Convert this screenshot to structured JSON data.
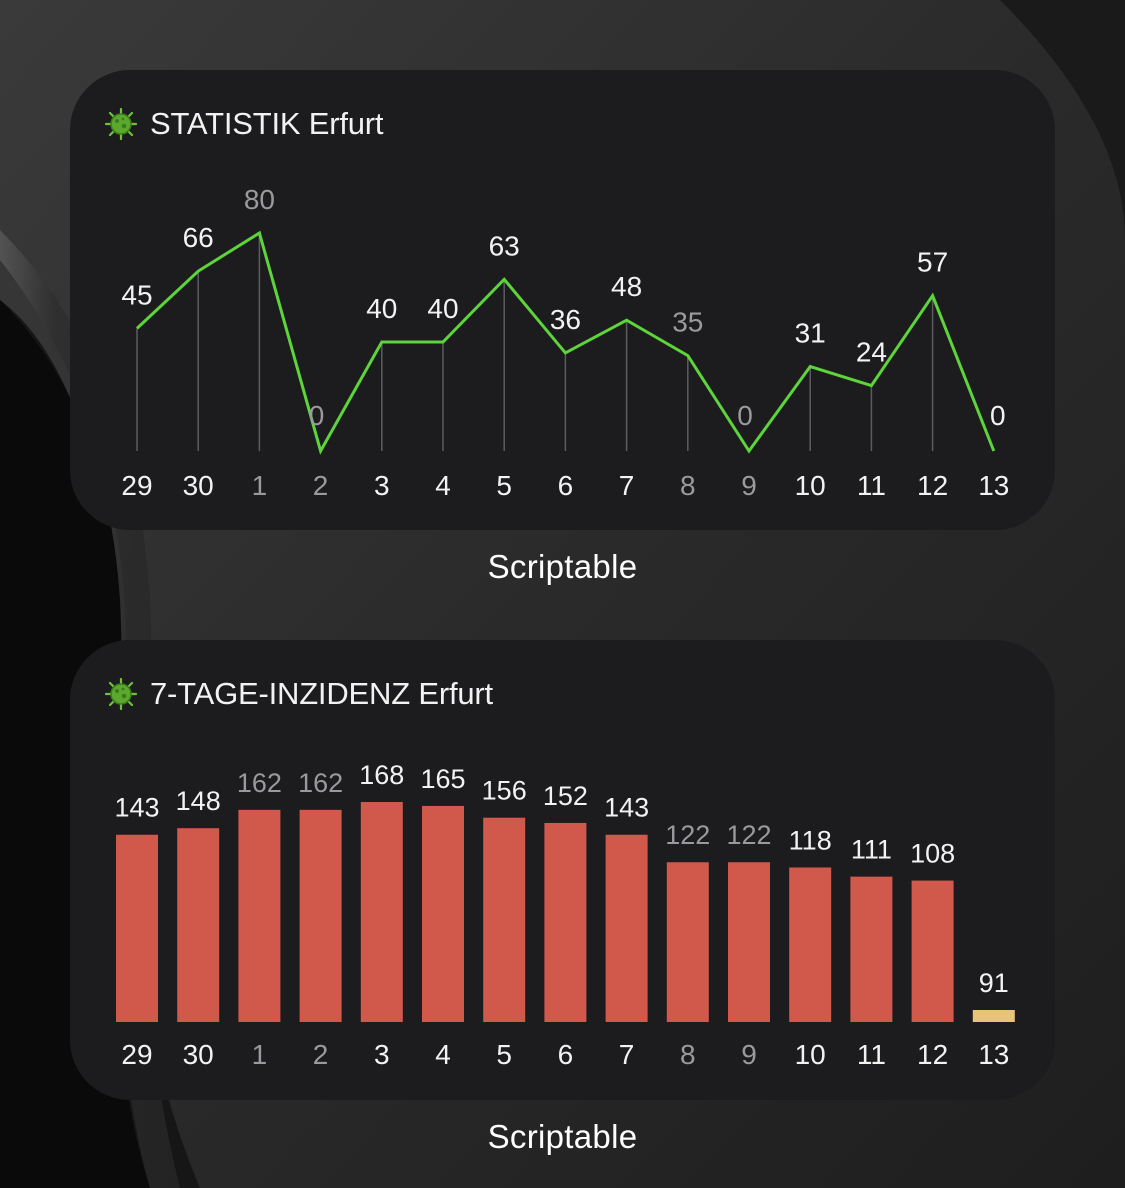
{
  "widgets": [
    {
      "title": "STATISTIK Erfurt",
      "icon": "virus-icon",
      "chart_data": {
        "type": "line",
        "categories": [
          "29",
          "30",
          "1",
          "2",
          "3",
          "4",
          "5",
          "6",
          "7",
          "8",
          "9",
          "10",
          "11",
          "12",
          "13"
        ],
        "values": [
          45,
          66,
          80,
          0,
          40,
          40,
          63,
          36,
          48,
          35,
          0,
          31,
          24,
          57,
          0
        ],
        "dimmed_categories": [
          "1",
          "2",
          "8",
          "9"
        ],
        "line_color": "#5dd43a"
      }
    },
    {
      "title": "7-TAGE-INZIDENZ Erfurt",
      "icon": "virus-icon",
      "chart_data": {
        "type": "bar",
        "categories": [
          "29",
          "30",
          "1",
          "2",
          "3",
          "4",
          "5",
          "6",
          "7",
          "8",
          "9",
          "10",
          "11",
          "12",
          "13"
        ],
        "values": [
          143,
          148,
          162,
          162,
          168,
          165,
          156,
          152,
          143,
          122,
          122,
          118,
          111,
          108,
          91
        ],
        "dimmed_categories": [
          "1",
          "2",
          "8",
          "9"
        ],
        "bar_color": "#d1594c",
        "highlight_color": "#e8c37b"
      }
    }
  ],
  "captions": [
    "Scriptable",
    "Scriptable"
  ]
}
